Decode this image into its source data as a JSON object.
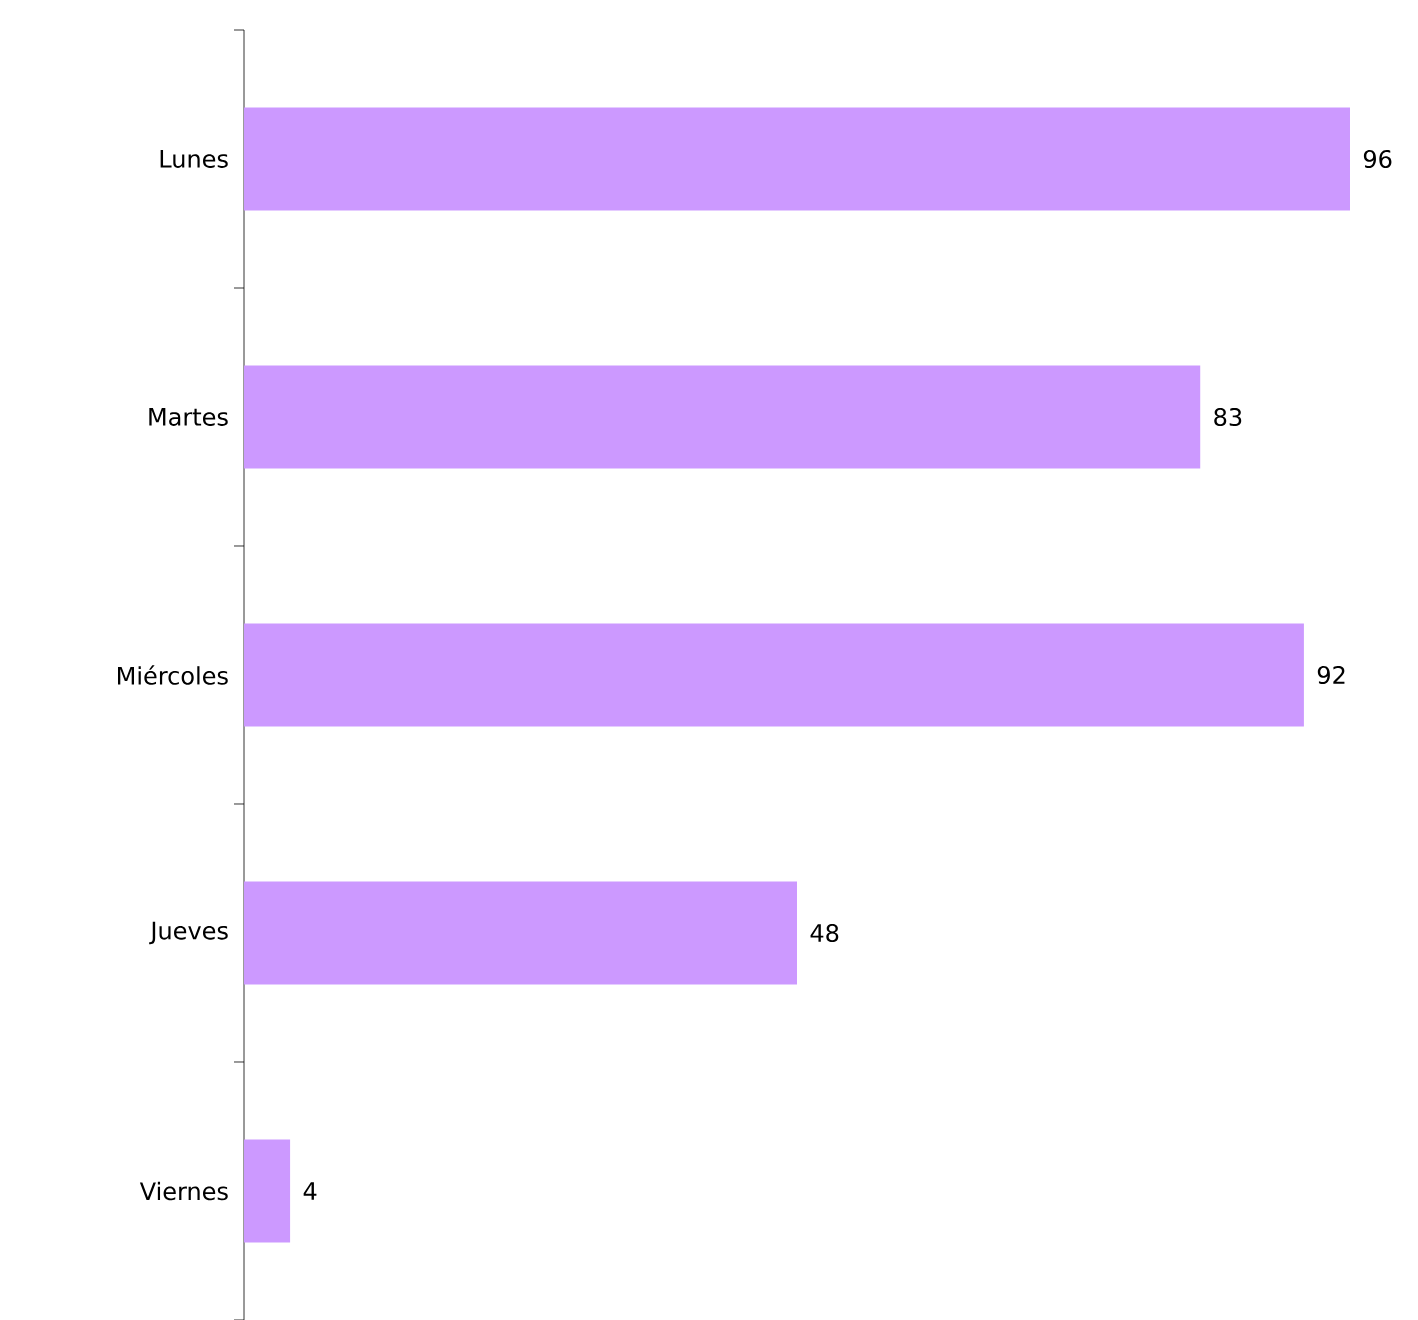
{
  "chart_data": {
    "type": "bar",
    "orientation": "horizontal",
    "data_labels": true,
    "color": "#cc99ff",
    "categories": [
      "Lunes",
      "Martes",
      "Miércoles",
      "Jueves",
      "Viernes"
    ],
    "values": [
      96,
      83,
      92,
      48,
      4
    ]
  }
}
